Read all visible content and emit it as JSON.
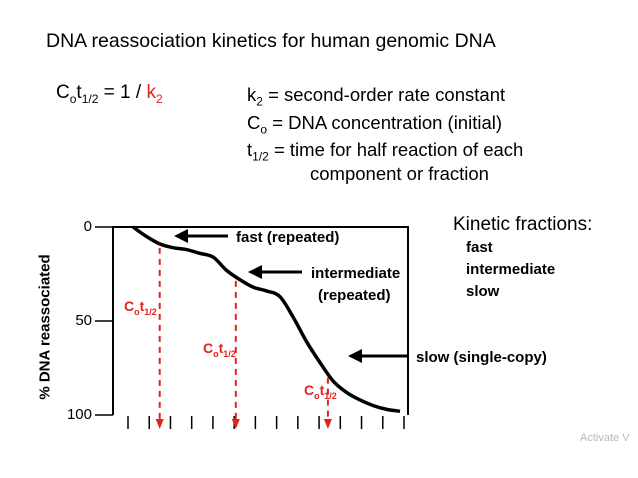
{
  "title": "DNA reassociation kinetics for human genomic DNA",
  "formula": {
    "lhs_main": "C",
    "lhs_sub1": "o",
    "lhs_t": "t",
    "lhs_sub2": "1/2",
    "eq": " = 1 / ",
    "k": "k",
    "k_sub": "2"
  },
  "definitions": [
    {
      "sym": "k",
      "sub": "2",
      "text": " = second-order rate constant"
    },
    {
      "sym": "C",
      "sub": "o",
      "text": " = DNA concentration (initial)"
    },
    {
      "sym": "t",
      "sub": "1/2",
      "text": " = time for half reaction of each"
    },
    {
      "sym": "",
      "sub": "",
      "text": "component or fraction"
    }
  ],
  "kinetic_fractions": {
    "title": "Kinetic fractions:",
    "items": [
      "fast",
      "intermediate",
      "slow"
    ]
  },
  "watermark": "Activate V",
  "chart_data": {
    "type": "line",
    "title": "",
    "xlabel": "",
    "ylabel": "% DNA reassociated",
    "ylim": [
      0,
      100
    ],
    "y_inverted": true,
    "y_ticks": [
      "0",
      "50",
      "100"
    ],
    "x_tick_count": 14,
    "grid": false,
    "x": [
      0,
      0.05,
      0.1,
      0.15,
      0.2,
      0.25,
      0.3,
      0.35,
      0.4,
      0.45,
      0.5,
      0.55,
      0.6,
      0.65,
      0.7,
      0.75,
      0.8,
      0.85,
      0.9,
      0.95,
      1.0
    ],
    "y": [
      0,
      5,
      9,
      11,
      12,
      14,
      16,
      23,
      28,
      32,
      34,
      37,
      48,
      61,
      72,
      82,
      88,
      92,
      95,
      97,
      98
    ],
    "series": [
      {
        "values": [
          0,
          5,
          9,
          11,
          12,
          14,
          16,
          23,
          28,
          32,
          34,
          37,
          48,
          61,
          72,
          82,
          88,
          92,
          95,
          97,
          98
        ]
      }
    ],
    "half_markers": [
      {
        "x": 0.1,
        "label_main": "C",
        "label_sub1": "o",
        "label_t": "t",
        "label_sub2": "1/2"
      },
      {
        "x": 0.385,
        "label_main": "C",
        "label_sub1": "o",
        "label_t": "t",
        "label_sub2": "1/2"
      },
      {
        "x": 0.73,
        "label_main": "C",
        "label_sub1": "o",
        "label_t": "t",
        "label_sub2": "1/2"
      }
    ],
    "annotations": [
      {
        "text": "fast (repeated)",
        "x": 0.22,
        "y": 5
      },
      {
        "text": "intermediate",
        "x": 0.48,
        "y": 24
      },
      {
        "text": "(repeated)",
        "x": 0.48,
        "y": 33
      },
      {
        "text": "slow (single-copy)",
        "x": 0.78,
        "y": 62
      }
    ],
    "colors": {
      "curve": "#000000",
      "marker": "#e0241b",
      "text": "#000000"
    }
  }
}
